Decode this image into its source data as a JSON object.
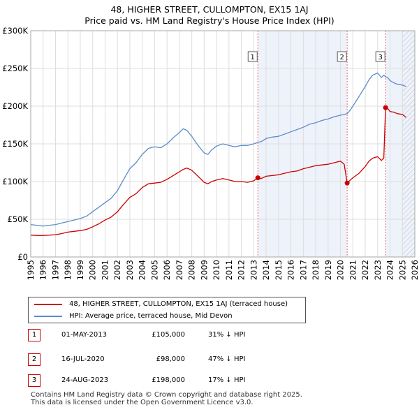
{
  "title_line1": "48, HIGHER STREET, CULLOMPTON, EX15 1AJ",
  "title_line2": "Price paid vs. HM Land Registry's House Price Index (HPI)",
  "chart_data": {
    "type": "line",
    "title": "48, HIGHER STREET, CULLOMPTON, EX15 1AJ — Price paid vs. HM Land Registry's House Price Index (HPI)",
    "xlabel": "",
    "ylabel": "",
    "xlim": [
      1995,
      2026
    ],
    "ylim": [
      0,
      300000
    ],
    "y_ticks": [
      0,
      50000,
      100000,
      150000,
      200000,
      250000,
      300000
    ],
    "y_tick_labels": [
      "£0",
      "£50K",
      "£100K",
      "£150K",
      "£200K",
      "£250K",
      "£300K"
    ],
    "x_ticks": [
      1995,
      1996,
      1997,
      1998,
      1999,
      2000,
      2001,
      2002,
      2003,
      2004,
      2005,
      2006,
      2007,
      2008,
      2009,
      2010,
      2011,
      2012,
      2013,
      2014,
      2015,
      2016,
      2017,
      2018,
      2019,
      2020,
      2021,
      2022,
      2023,
      2024,
      2025,
      2026
    ],
    "x_tick_labels": [
      "1995",
      "1996",
      "1997",
      "1998",
      "1999",
      "2000",
      "2001",
      "2002",
      "2003",
      "2004",
      "2005",
      "2006",
      "2007",
      "2008",
      "2009",
      "2010",
      "2011",
      "2012",
      "2013",
      "2014",
      "2015",
      "2016",
      "2017",
      "2018",
      "2019",
      "2020",
      "2021",
      "2022",
      "2023",
      "2024",
      "2025",
      "2026"
    ],
    "grid": true,
    "series": [
      {
        "name": "48, HIGHER STREET, CULLOMPTON, EX15 1AJ (terraced house)",
        "color": "#cc0000",
        "x": [
          1995.0,
          1995.5,
          1996.0,
          1996.5,
          1997.0,
          1997.5,
          1998.0,
          1998.5,
          1999.0,
          1999.5,
          2000.0,
          2000.5,
          2001.0,
          2001.5,
          2002.0,
          2002.5,
          2003.0,
          2003.5,
          2004.0,
          2004.5,
          2005.0,
          2005.5,
          2006.0,
          2006.5,
          2007.0,
          2007.3,
          2007.6,
          2008.0,
          2008.5,
          2009.0,
          2009.3,
          2009.6,
          2010.0,
          2010.5,
          2011.0,
          2011.5,
          2012.0,
          2012.5,
          2013.0,
          2013.33,
          2013.6,
          2014.0,
          2014.5,
          2015.0,
          2015.5,
          2016.0,
          2016.5,
          2017.0,
          2017.5,
          2018.0,
          2018.5,
          2019.0,
          2019.5,
          2020.0,
          2020.3,
          2020.54,
          2020.8,
          2021.0,
          2021.5,
          2022.0,
          2022.3,
          2022.6,
          2023.0,
          2023.3,
          2023.5,
          2023.64,
          2023.8,
          2024.0,
          2024.3,
          2024.6,
          2025.0,
          2025.3
        ],
        "values": [
          29000,
          28500,
          28500,
          29000,
          29500,
          31000,
          33000,
          34000,
          35000,
          36500,
          40000,
          44000,
          49000,
          53000,
          60000,
          70000,
          79000,
          84000,
          92000,
          97000,
          98000,
          99000,
          103000,
          108000,
          113000,
          116000,
          118000,
          115000,
          107000,
          99000,
          97000,
          100000,
          102000,
          104000,
          102000,
          100000,
          100000,
          99000,
          101000,
          105000,
          104000,
          107000,
          108000,
          109000,
          111000,
          113000,
          114000,
          117000,
          119000,
          121000,
          122000,
          123000,
          125000,
          127000,
          123000,
          98000,
          102000,
          105000,
          111000,
          120000,
          127000,
          131000,
          133000,
          128000,
          131000,
          198000,
          197000,
          193000,
          192000,
          190000,
          189000,
          185000
        ]
      },
      {
        "name": "HPI: Average price, terraced house, Mid Devon",
        "color": "#5b8dc7",
        "x": [
          1995.0,
          1995.5,
          1996.0,
          1996.5,
          1997.0,
          1997.5,
          1998.0,
          1998.5,
          1999.0,
          1999.5,
          2000.0,
          2000.5,
          2001.0,
          2001.5,
          2002.0,
          2002.5,
          2003.0,
          2003.5,
          2004.0,
          2004.5,
          2005.0,
          2005.5,
          2006.0,
          2006.5,
          2007.0,
          2007.3,
          2007.6,
          2008.0,
          2008.5,
          2009.0,
          2009.3,
          2009.6,
          2010.0,
          2010.5,
          2011.0,
          2011.5,
          2012.0,
          2012.5,
          2013.0,
          2013.33,
          2013.6,
          2014.0,
          2014.5,
          2015.0,
          2015.5,
          2016.0,
          2016.5,
          2017.0,
          2017.5,
          2018.0,
          2018.5,
          2019.0,
          2019.5,
          2020.0,
          2020.3,
          2020.54,
          2020.8,
          2021.0,
          2021.5,
          2022.0,
          2022.3,
          2022.6,
          2023.0,
          2023.3,
          2023.5,
          2023.64,
          2023.8,
          2024.0,
          2024.3,
          2024.6,
          2025.0,
          2025.3
        ],
        "values": [
          43000,
          42000,
          41000,
          42000,
          43000,
          45000,
          47000,
          49000,
          51000,
          54000,
          60000,
          66000,
          72000,
          78000,
          88000,
          103000,
          117000,
          125000,
          136000,
          144000,
          146000,
          145000,
          150000,
          158000,
          165000,
          170000,
          168000,
          160000,
          148000,
          138000,
          136000,
          142000,
          147000,
          150000,
          148000,
          146000,
          148000,
          148000,
          150000,
          152000,
          153000,
          157000,
          159000,
          160000,
          163000,
          166000,
          169000,
          172000,
          176000,
          178000,
          181000,
          183000,
          186000,
          188000,
          189000,
          190000,
          195000,
          200000,
          213000,
          226000,
          235000,
          241000,
          244000,
          238000,
          241000,
          239000,
          238000,
          234000,
          231000,
          229000,
          228000,
          226000
        ]
      }
    ],
    "annotations": [
      {
        "label": "1",
        "x": 2013.33,
        "price": 105000
      },
      {
        "label": "2",
        "x": 2020.54,
        "price": 98000
      },
      {
        "label": "3",
        "x": 2023.64,
        "price": 198000
      }
    ],
    "shaded_periods": [
      [
        2013.33,
        2020.54
      ],
      [
        2023.64,
        2026
      ]
    ],
    "hatched_period": [
      2025.0,
      2026
    ]
  },
  "legend": {
    "items": [
      {
        "label": "48, HIGHER STREET, CULLOMPTON, EX15 1AJ (terraced house)",
        "color": "#cc0000"
      },
      {
        "label": "HPI: Average price, terraced house, Mid Devon",
        "color": "#5b8dc7"
      }
    ]
  },
  "transactions": [
    {
      "num": "1",
      "date": "01-MAY-2013",
      "price": "£105,000",
      "hpi": "31% ↓ HPI"
    },
    {
      "num": "2",
      "date": "16-JUL-2020",
      "price": "£98,000",
      "hpi": "47% ↓ HPI"
    },
    {
      "num": "3",
      "date": "24-AUG-2023",
      "price": "£198,000",
      "hpi": "17% ↓ HPI"
    }
  ],
  "footer": {
    "line1": "Contains HM Land Registry data © Crown copyright and database right 2025.",
    "line2": "This data is licensed under the Open Government Licence v3.0."
  }
}
